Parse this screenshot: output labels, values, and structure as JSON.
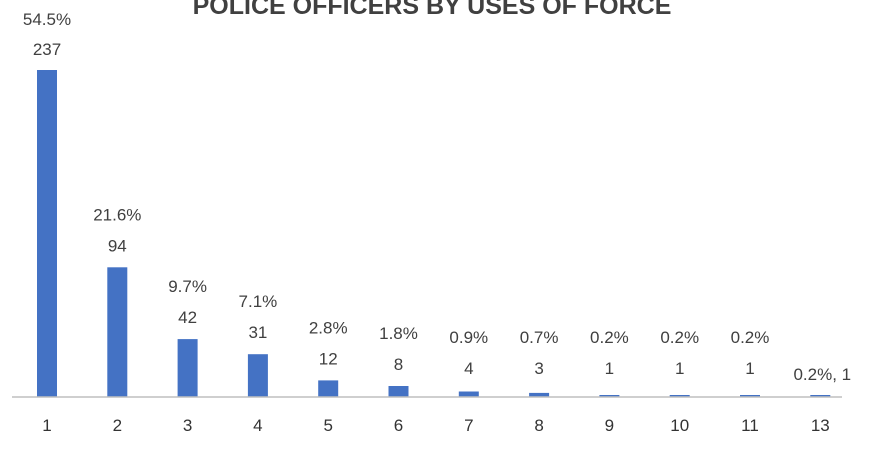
{
  "chart_data": {
    "type": "bar",
    "title": "POLICE OFFICERS BY USES OF FORCE",
    "categories": [
      "1",
      "2",
      "3",
      "4",
      "5",
      "6",
      "7",
      "8",
      "9",
      "10",
      "11",
      "13"
    ],
    "values": [
      237,
      94,
      42,
      31,
      12,
      8,
      4,
      3,
      1,
      1,
      1,
      1
    ],
    "percent_labels": [
      "54.5%",
      "21.6%",
      "9.7%",
      "7.1%",
      "2.8%",
      "1.8%",
      "0.9%",
      "0.7%",
      "0.2%",
      "0.2%",
      "0.2%",
      "0.2%"
    ],
    "last_label": "0.2%, 1",
    "xlabel": "",
    "ylabel": "",
    "ylim": [
      0,
      237
    ],
    "grid": false,
    "legend": "none",
    "bar_color": "#4472C4",
    "axis_color": "#BFBFBF"
  }
}
